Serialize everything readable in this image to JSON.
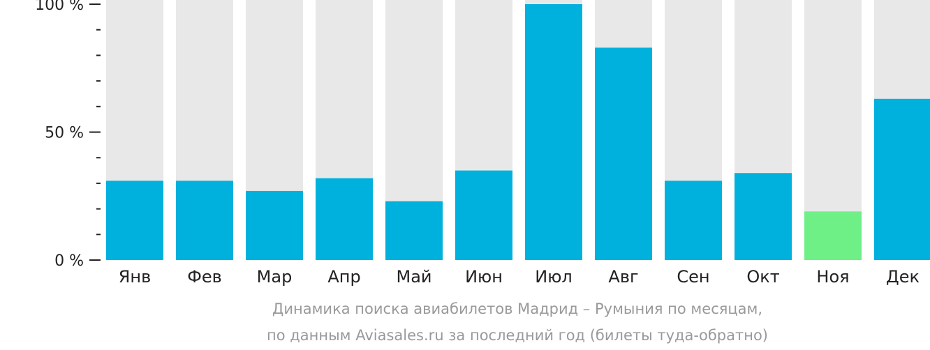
{
  "chart_data": {
    "type": "bar",
    "categories": [
      "Янв",
      "Фев",
      "Мар",
      "Апр",
      "Май",
      "Июн",
      "Июл",
      "Авг",
      "Сен",
      "Окт",
      "Ноя",
      "Дек"
    ],
    "values": [
      31,
      31,
      27,
      32,
      23,
      35,
      100,
      83,
      31,
      34,
      19,
      63
    ],
    "ylim": [
      0,
      100
    ],
    "yticks": [
      {
        "value": 0,
        "label": "0 %"
      },
      {
        "value": 50,
        "label": "50 %"
      },
      {
        "value": 100,
        "label": "100 %"
      }
    ],
    "minor_ticks_per_step": 5,
    "grid": false,
    "background_bars": true,
    "caption": [
      "Динамика поиска авиабилетов Мадрид – Румыния по месяцам,",
      "по данным Aviasales.ru за последний год (билеты туда-обратно)"
    ],
    "highlight_index": 10,
    "colors": {
      "bar": "#00b1dd",
      "highlight": "#6ef087",
      "background_bar": "#e8e8e8",
      "axis": "#222222",
      "label": "#222222",
      "caption": "#999999"
    }
  }
}
